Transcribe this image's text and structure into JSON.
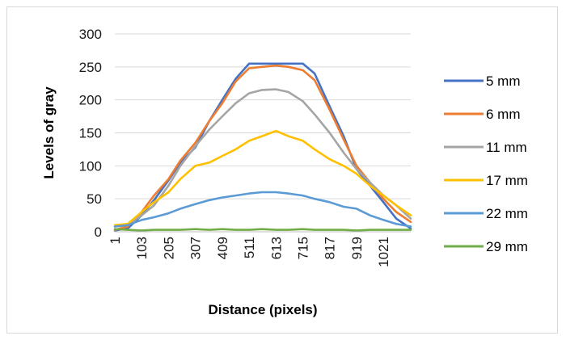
{
  "chart_data": {
    "type": "line",
    "title": "",
    "xlabel": "Distance (pixels)",
    "ylabel": "Levels of gray",
    "xlim": [
      1,
      1125
    ],
    "ylim": [
      0,
      300
    ],
    "yticks": [
      0,
      50,
      100,
      150,
      200,
      250,
      300
    ],
    "xticks": [
      "1",
      "103",
      "205",
      "307",
      "409",
      "511",
      "613",
      "715",
      "817",
      "919",
      "1021"
    ],
    "grid": "horizontal",
    "legend": "right",
    "x": [
      1,
      50,
      103,
      150,
      205,
      250,
      307,
      360,
      409,
      460,
      511,
      560,
      613,
      660,
      715,
      760,
      817,
      870,
      919,
      970,
      1021,
      1070,
      1125
    ],
    "series": [
      {
        "name": "5 mm",
        "color": "#4472c4",
        "values": [
          2,
          5,
          25,
          48,
          78,
          105,
          128,
          168,
          200,
          232,
          255,
          255,
          255,
          255,
          255,
          240,
          190,
          145,
          95,
          70,
          45,
          20,
          5
        ]
      },
      {
        "name": "6 mm",
        "color": "#ed7d31",
        "values": [
          3,
          8,
          30,
          55,
          80,
          108,
          135,
          168,
          195,
          228,
          248,
          250,
          252,
          250,
          245,
          230,
          185,
          140,
          100,
          75,
          50,
          30,
          15
        ]
      },
      {
        "name": "11 mm",
        "color": "#a5a5a5",
        "values": [
          8,
          10,
          25,
          40,
          70,
          100,
          130,
          155,
          175,
          195,
          210,
          215,
          216,
          212,
          198,
          178,
          150,
          120,
          95,
          75,
          55,
          40,
          20
        ]
      },
      {
        "name": "17 mm",
        "color": "#ffc000",
        "values": [
          10,
          12,
          30,
          45,
          60,
          80,
          100,
          105,
          115,
          125,
          138,
          145,
          153,
          145,
          138,
          125,
          110,
          100,
          88,
          70,
          55,
          40,
          25
        ]
      },
      {
        "name": "22 mm",
        "color": "#5b9bd5",
        "values": [
          8,
          10,
          18,
          22,
          28,
          35,
          42,
          48,
          52,
          55,
          58,
          60,
          60,
          58,
          55,
          50,
          45,
          38,
          35,
          25,
          18,
          12,
          8
        ]
      },
      {
        "name": "29 mm",
        "color": "#70ad47",
        "values": [
          4,
          3,
          2,
          3,
          3,
          3,
          4,
          3,
          4,
          3,
          3,
          4,
          3,
          3,
          4,
          3,
          3,
          3,
          2,
          3,
          3,
          3,
          3
        ]
      }
    ]
  }
}
